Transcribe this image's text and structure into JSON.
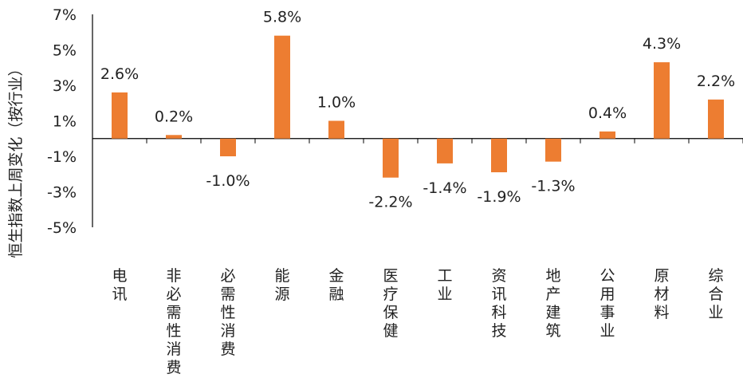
{
  "chart_data": {
    "type": "bar",
    "ylabel": "恒生指数上周变化（按行业）",
    "xlabel": "",
    "ylim": [
      -5,
      7
    ],
    "y_ticks": [
      "7%",
      "5%",
      "3%",
      "1%",
      "-1%",
      "-3%",
      "-5%"
    ],
    "y_tick_values": [
      7,
      5,
      3,
      1,
      -1,
      -3,
      -5
    ],
    "categories": [
      "电讯",
      "非必需性消费",
      "必需性消费",
      "能源",
      "金融",
      "医疗保健",
      "工业",
      "资讯科技",
      "地产建筑",
      "公用事业",
      "原材料",
      "综合业"
    ],
    "values": [
      2.6,
      0.2,
      -1.0,
      5.8,
      1.0,
      -2.2,
      -1.4,
      -1.9,
      -1.3,
      0.4,
      4.3,
      2.2
    ],
    "data_labels": [
      "2.6%",
      "0.2%",
      "-1.0%",
      "5.8%",
      "1.0%",
      "-2.2%",
      "-1.4%",
      "-1.9%",
      "-1.3%",
      "0.4%",
      "4.3%",
      "2.2%"
    ],
    "bar_color": "#ED7D31",
    "axis_color": "#000000",
    "grid": false,
    "legend": "none"
  }
}
